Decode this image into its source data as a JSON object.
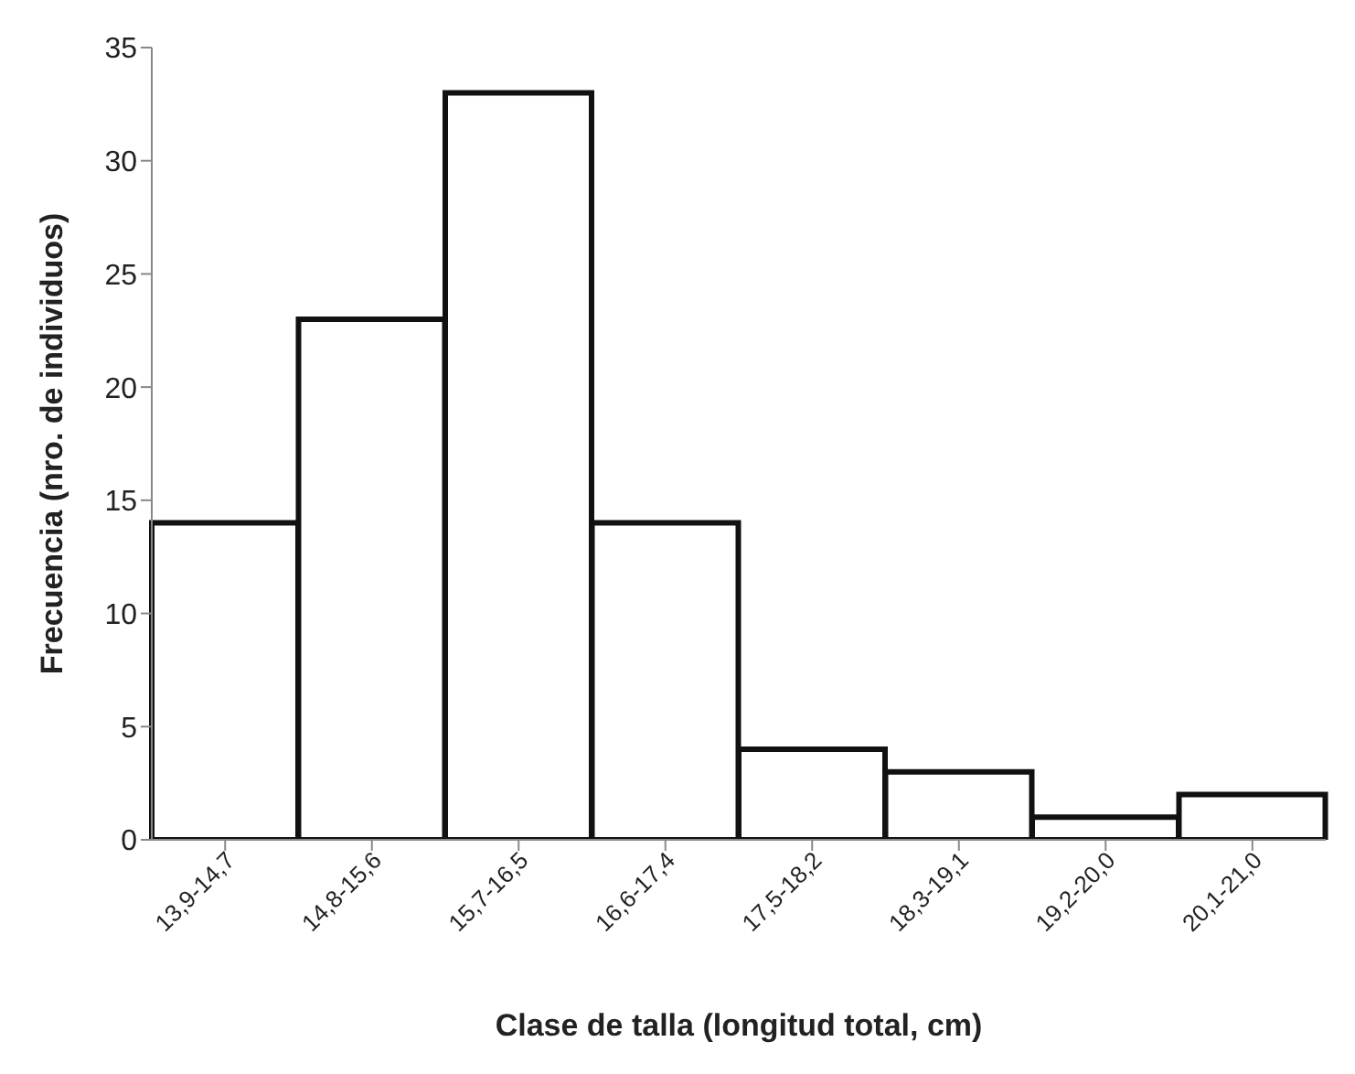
{
  "chart_data": {
    "type": "bar",
    "xlabel": "Clase de talla (longitud total, cm)",
    "ylabel": "Frecuencia (nro. de individuos)",
    "categories": [
      "13,9-14,7",
      "14,8-15,6",
      "15,7-16,5",
      "16,6-17,4",
      "17,5-18,2",
      "18,3-19,1",
      "19,2-20,0",
      "20,1-21,0"
    ],
    "values": [
      14,
      23,
      33,
      14,
      4,
      3,
      1,
      2
    ],
    "color": "#ffffff",
    "ylim": [
      0,
      35
    ],
    "yticks": [
      0,
      5,
      10,
      15,
      20,
      25,
      30,
      35
    ],
    "grid": false
  }
}
